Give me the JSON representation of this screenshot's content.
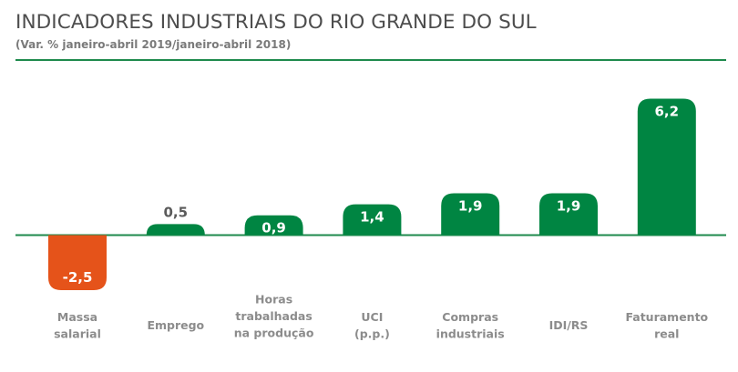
{
  "title": "INDICADORES INDUSTRIAIS DO RIO GRANDE DO SUL",
  "subtitle": "(Var. % janeiro-abril 2019/janeiro-abril 2018)",
  "colors": {
    "positive": "#008542",
    "negative": "#e5531a",
    "axis": "#1e8a4c",
    "label": "#8c8c8c",
    "value_outside": "#5a5a5a"
  },
  "chart_data": {
    "type": "bar",
    "title": "INDICADORES INDUSTRIAIS DO RIO GRANDE DO SUL",
    "subtitle": "(Var. % janeiro-abril 2019/janeiro-abril 2018)",
    "categories": [
      [
        "Massa",
        "salarial"
      ],
      [
        "Emprego"
      ],
      [
        "Horas",
        "trabalhadas",
        "na produção"
      ],
      [
        "UCI",
        "(p.p.)"
      ],
      [
        "Compras",
        "industriais"
      ],
      [
        "IDI/RS"
      ],
      [
        "Faturamento",
        "real"
      ]
    ],
    "values": [
      -2.5,
      0.5,
      0.9,
      1.4,
      1.9,
      1.9,
      6.2
    ],
    "value_labels": [
      "-2,5",
      "0,5",
      "0,9",
      "1,4",
      "1,9",
      "1,9",
      "6,2"
    ],
    "grid": false,
    "legend": "none"
  }
}
